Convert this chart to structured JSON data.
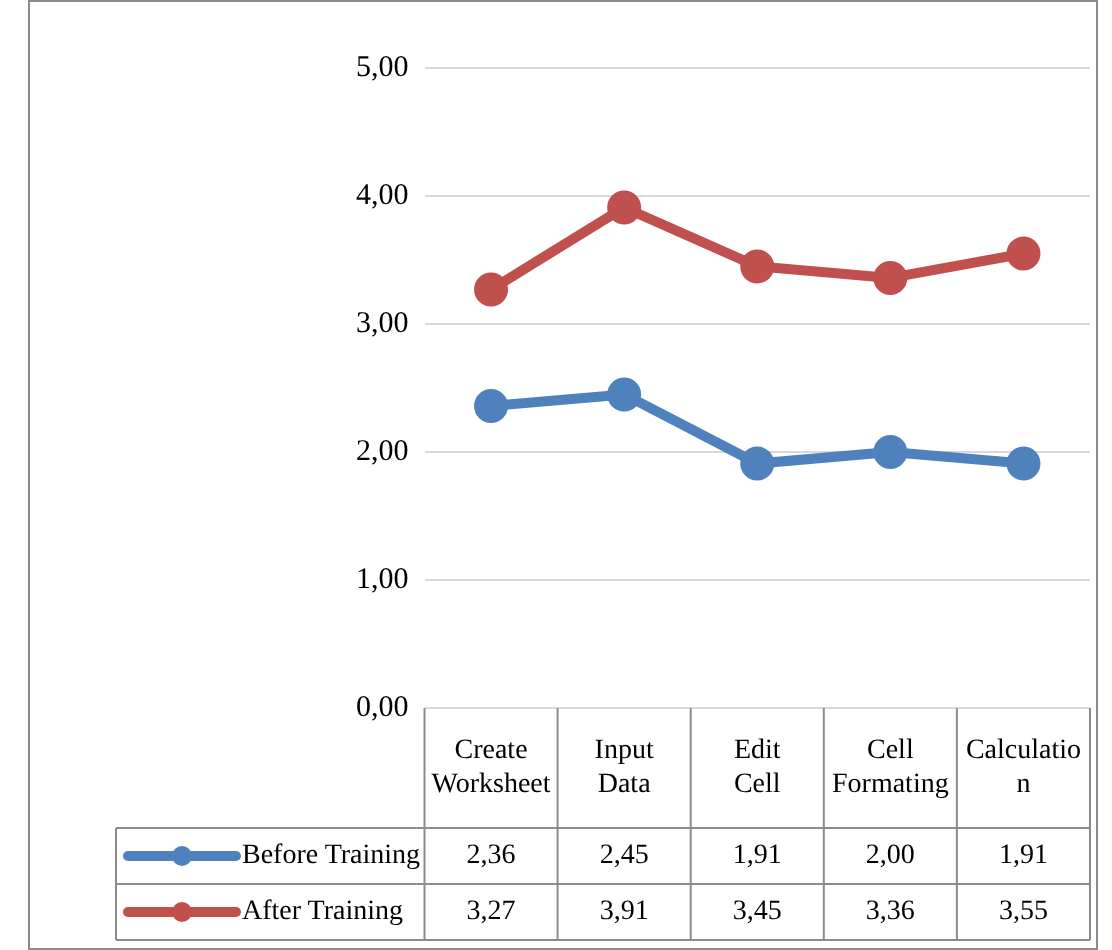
{
  "chart_data": {
    "type": "line",
    "categories": [
      "Create Worksheet",
      "Input Data",
      "Edit Cell",
      "Cell Formating",
      "Calculation"
    ],
    "series": [
      {
        "name": "Before Training",
        "color": "#4f81bd",
        "values": [
          2.36,
          2.45,
          1.91,
          2.0,
          1.91
        ],
        "value_labels": [
          "2,36",
          "2,45",
          "1,91",
          "2,00",
          "1,91"
        ]
      },
      {
        "name": "After Training",
        "color": "#c0504d",
        "values": [
          3.27,
          3.91,
          3.45,
          3.36,
          3.55
        ],
        "value_labels": [
          "3,27",
          "3,91",
          "3,45",
          "3,36",
          "3,55"
        ]
      }
    ],
    "ylim": [
      0,
      5
    ],
    "yticks": [
      {
        "value": 0,
        "label": "0,00"
      },
      {
        "value": 1,
        "label": "1,00"
      },
      {
        "value": 2,
        "label": "2,00"
      },
      {
        "value": 3,
        "label": "3,00"
      },
      {
        "value": 4,
        "label": "4,00"
      },
      {
        "value": 5,
        "label": "5,00"
      }
    ],
    "grid": "y",
    "marker": "circle",
    "line_style": "solid",
    "legend": "bottom left"
  }
}
